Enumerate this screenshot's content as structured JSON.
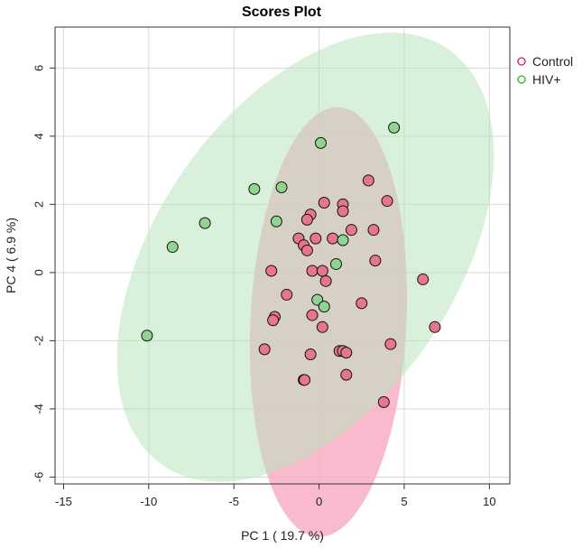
{
  "chart_data": {
    "type": "scatter",
    "title": "Scores Plot",
    "xlabel": "PC 1 ( 19.7 %)",
    "ylabel": "PC 4 ( 6.9 %)",
    "xlim": [
      -15.5,
      11.2
    ],
    "ylim": [
      -6.2,
      7.2
    ],
    "x_ticks": [
      -15,
      -10,
      -5,
      0,
      5,
      10
    ],
    "y_ticks": [
      -6,
      -4,
      -2,
      0,
      2,
      4,
      6
    ],
    "grid": true,
    "legend_position": "top-right",
    "series": [
      {
        "name": "Control",
        "color": "#e0116b",
        "point_fill": "#e8758f",
        "ellipse_fill": "#f7a9c1",
        "ellipse": {
          "center": [
            0.55,
            -1.45
          ],
          "semi_axes": [
            6.35,
            4.55
          ],
          "angle_deg": 80
        },
        "points": [
          [
            2.9,
            2.7
          ],
          [
            4.0,
            2.1
          ],
          [
            0.3,
            2.05
          ],
          [
            1.4,
            2.0
          ],
          [
            1.4,
            1.8
          ],
          [
            -0.5,
            1.7
          ],
          [
            -0.7,
            1.55
          ],
          [
            1.9,
            1.25
          ],
          [
            3.2,
            1.25
          ],
          [
            -1.2,
            1.0
          ],
          [
            -0.2,
            1.0
          ],
          [
            0.8,
            1.0
          ],
          [
            -0.9,
            0.8
          ],
          [
            -0.7,
            0.65
          ],
          [
            3.3,
            0.35
          ],
          [
            -2.8,
            0.05
          ],
          [
            -0.4,
            0.05
          ],
          [
            0.2,
            0.05
          ],
          [
            0.4,
            -0.25
          ],
          [
            -1.9,
            -0.65
          ],
          [
            2.5,
            -0.9
          ],
          [
            6.1,
            -0.2
          ],
          [
            -2.6,
            -1.3
          ],
          [
            -2.7,
            -1.4
          ],
          [
            -0.4,
            -1.25
          ],
          [
            0.2,
            -1.6
          ],
          [
            6.8,
            -1.6
          ],
          [
            4.2,
            -2.1
          ],
          [
            -3.2,
            -2.25
          ],
          [
            1.2,
            -2.3
          ],
          [
            1.4,
            -2.3
          ],
          [
            1.6,
            -2.35
          ],
          [
            -0.5,
            -2.4
          ],
          [
            -0.9,
            -3.15
          ],
          [
            -0.85,
            -3.15
          ],
          [
            1.6,
            -3.0
          ],
          [
            3.8,
            -3.8
          ]
        ]
      },
      {
        "name": "HIV+",
        "color": "#2db02d",
        "point_fill": "#8fd48f",
        "ellipse_fill": "#b9e4bd",
        "ellipse": {
          "center": [
            -0.8,
            0.45
          ],
          "semi_axes": [
            11.6,
            5.6
          ],
          "angle_deg": 20
        },
        "points": [
          [
            4.4,
            4.25
          ],
          [
            0.1,
            3.8
          ],
          [
            -3.8,
            2.45
          ],
          [
            -2.2,
            2.5
          ],
          [
            -2.5,
            1.5
          ],
          [
            -6.7,
            1.45
          ],
          [
            -8.6,
            0.75
          ],
          [
            1.4,
            0.95
          ],
          [
            1.0,
            0.25
          ],
          [
            -0.1,
            -0.8
          ],
          [
            0.3,
            -1.0
          ],
          [
            -10.1,
            -1.85
          ]
        ]
      }
    ]
  }
}
